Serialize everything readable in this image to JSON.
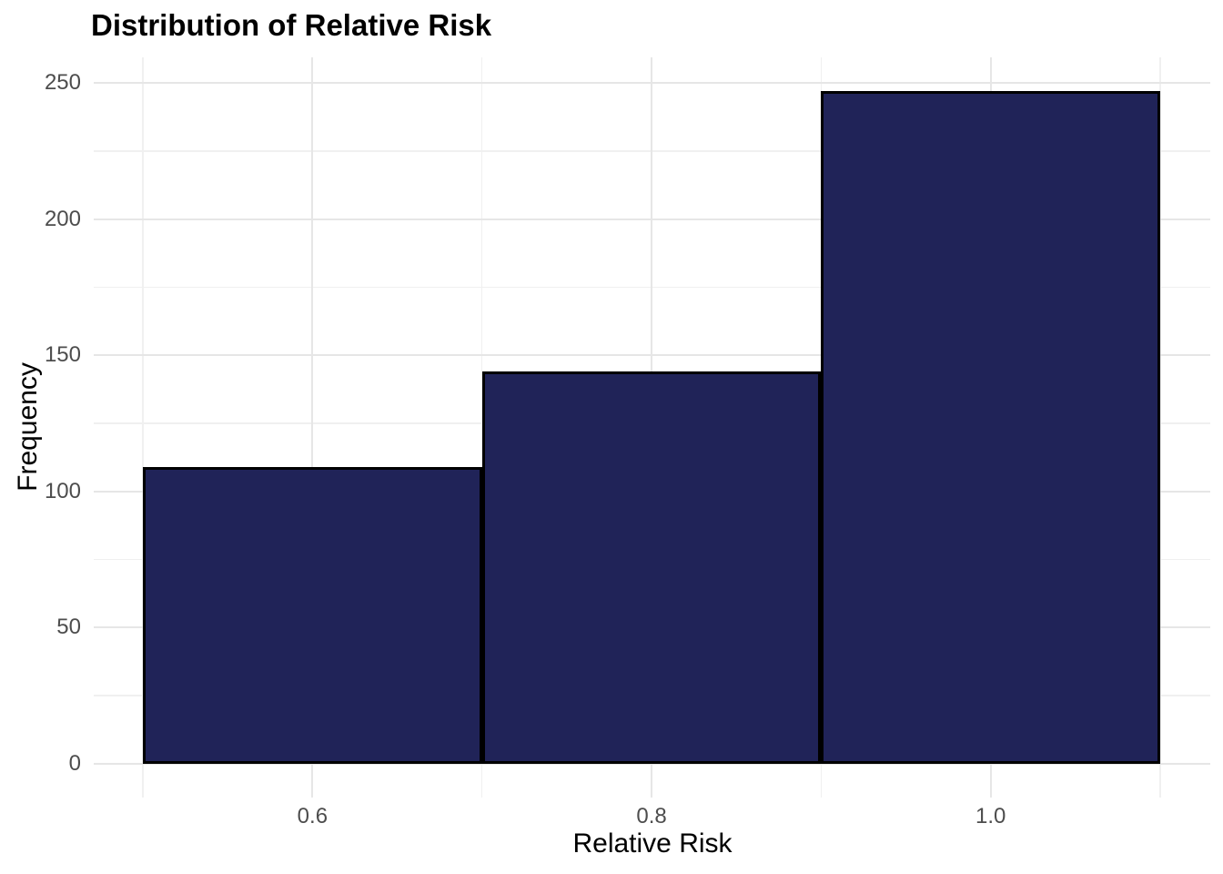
{
  "chart_data": {
    "type": "bar",
    "chart_kind": "histogram",
    "title": "Distribution of Relative Risk",
    "xlabel": "Relative Risk",
    "ylabel": "Frequency",
    "bin_edges": [
      0.5,
      0.7,
      0.9,
      1.1
    ],
    "bin_centers": [
      0.6,
      0.8,
      1.0
    ],
    "values": [
      109,
      144,
      247
    ],
    "total_count": 500,
    "xlim": [
      0.471,
      1.1295
    ],
    "ylim": [
      -12.4,
      259.4
    ],
    "x_ticks": [
      {
        "value": 0.6,
        "label": "0.6"
      },
      {
        "value": 0.8,
        "label": "0.8"
      },
      {
        "value": 1.0,
        "label": "1.0"
      }
    ],
    "x_minor_gridlines": [
      0.5,
      0.7,
      0.9,
      1.1
    ],
    "y_ticks": [
      {
        "value": 0,
        "label": "0"
      },
      {
        "value": 50,
        "label": "50"
      },
      {
        "value": 100,
        "label": "100"
      },
      {
        "value": 150,
        "label": "150"
      },
      {
        "value": 200,
        "label": "200"
      },
      {
        "value": 250,
        "label": "250"
      }
    ],
    "y_minor_gridlines": [
      25,
      75,
      125,
      175,
      225
    ],
    "grid": "on",
    "legend": "none",
    "colors": {
      "background": "#ffffff",
      "bar_fill": "#202358",
      "bar_border": "#000000",
      "grid_major": "#e6e6e6",
      "grid_minor": "#f0f0f0",
      "tick_label": "#4d4d4d",
      "axis_title": "#000000",
      "title": "#000000"
    }
  }
}
